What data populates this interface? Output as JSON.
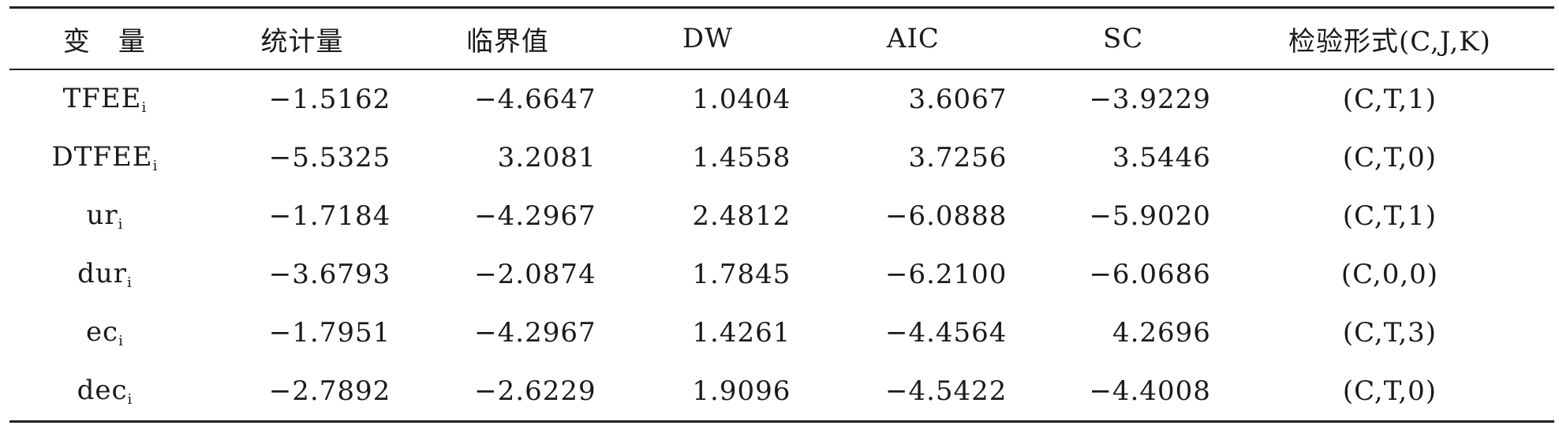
{
  "table": {
    "headers": [
      "变　量",
      "统计量",
      "临界值",
      "DW",
      "AIC",
      "SC",
      "检验形式(C,J,K)"
    ],
    "rows": [
      {
        "var": "TFEE",
        "sub": "i",
        "stat": "−1.5162",
        "crit": "−4.6647",
        "dw": "1.0404",
        "aic": "3.6067",
        "sc": "−3.9229",
        "form": "(C,T,1)"
      },
      {
        "var": "DTFEE",
        "sub": "i",
        "stat": "−5.5325",
        "crit": "3.2081",
        "dw": "1.4558",
        "aic": "3.7256",
        "sc": "3.5446",
        "form": "(C,T,0)"
      },
      {
        "var": "ur",
        "sub": "i",
        "stat": "−1.7184",
        "crit": "−4.2967",
        "dw": "2.4812",
        "aic": "−6.0888",
        "sc": "−5.9020",
        "form": "(C,T,1)"
      },
      {
        "var": "dur",
        "sub": "i",
        "stat": "−3.6793",
        "crit": "−2.0874",
        "dw": "1.7845",
        "aic": "−6.2100",
        "sc": "−6.0686",
        "form": "(C,0,0)"
      },
      {
        "var": "ec",
        "sub": "i",
        "stat": "−1.7951",
        "crit": "−4.2967",
        "dw": "1.4261",
        "aic": "−4.4564",
        "sc": "4.2696",
        "form": "(C,T,3)"
      },
      {
        "var": "dec",
        "sub": "i",
        "stat": "−2.7892",
        "crit": "−2.6229",
        "dw": "1.9096",
        "aic": "−4.5422",
        "sc": "−4.4008",
        "form": "(C,T,0)"
      }
    ]
  }
}
